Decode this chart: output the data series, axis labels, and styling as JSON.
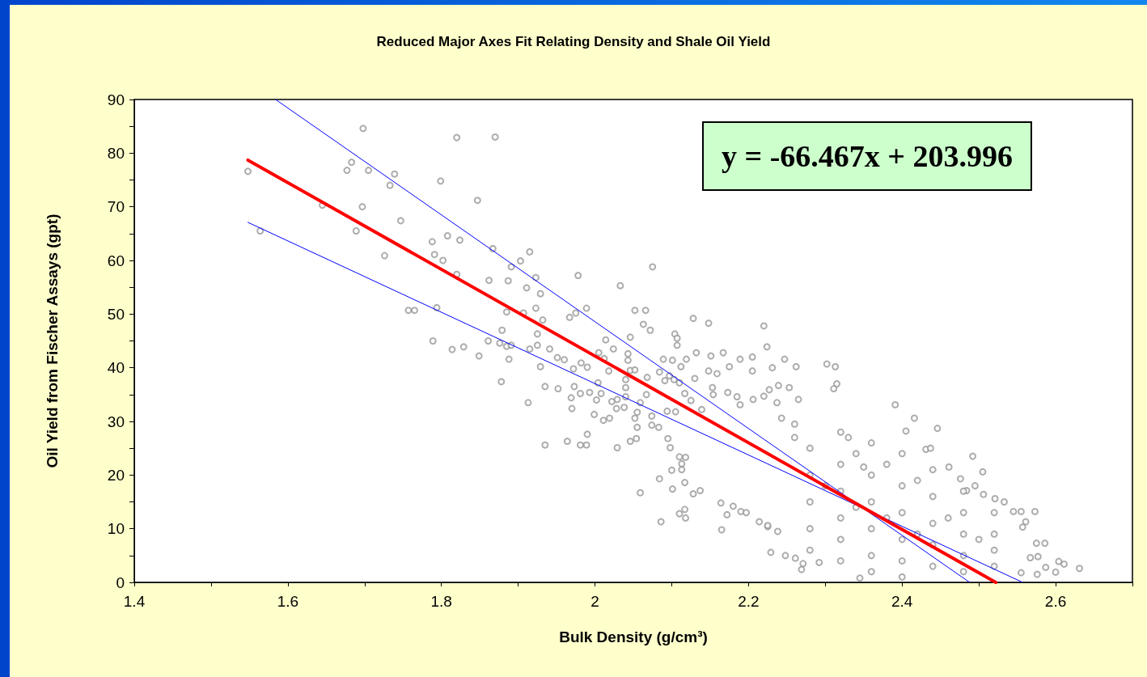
{
  "chart_data": {
    "type": "scatter",
    "title": "Reduced Major Axes Fit Relating Density and Shale Oil Yield",
    "xlabel": "Bulk Density (g/cm³)",
    "ylabel": "Oil Yield from Fischer Assays (gpt)",
    "annotations": [
      "y = -66.467x + 203.996"
    ],
    "xlim": [
      1.4,
      2.7
    ],
    "xticks": [
      1.4,
      {
        "value": 1.5,
        "label": null
      },
      1.6,
      {
        "value": 1.7,
        "label": null
      },
      1.8,
      {
        "value": 1.9,
        "label": null
      },
      2,
      {
        "value": 2.1,
        "label": null
      },
      2.2,
      {
        "value": 2.3,
        "label": null
      },
      2.4,
      {
        "value": 2.5,
        "label": null
      },
      2.6,
      {
        "value": 2.7,
        "label": null
      }
    ],
    "ylim": [
      0,
      90
    ],
    "yticks": [
      0,
      {
        "value": 5,
        "label": null
      },
      10,
      {
        "value": 15,
        "label": null
      },
      20,
      {
        "value": 25,
        "label": null
      },
      30,
      {
        "value": 35,
        "label": null
      },
      40,
      {
        "value": 45,
        "label": null
      },
      50,
      {
        "value": 55,
        "label": null
      },
      60,
      {
        "value": 65,
        "label": null
      },
      70,
      {
        "value": 75,
        "label": null
      },
      80,
      {
        "value": 85,
        "label": null
      },
      90
    ],
    "grid": false,
    "marker": "circle",
    "series": [
      {
        "color": "#999999",
        "x": [
          1.548,
          1.564,
          1.645,
          1.677,
          1.683,
          1.698,
          1.705,
          1.697,
          1.689,
          1.733,
          1.739,
          1.747,
          1.726,
          1.757,
          1.765,
          1.794,
          1.789,
          1.814,
          1.829,
          1.849,
          1.788,
          1.791,
          1.802,
          1.808,
          1.799,
          1.82,
          1.824,
          1.82,
          1.847,
          1.87,
          1.867,
          1.915,
          1.903,
          1.891,
          1.978,
          2.075,
          2.033,
          1.862,
          1.887,
          1.911,
          1.929,
          1.923,
          1.861,
          1.876,
          1.885,
          1.891,
          1.879,
          1.885,
          1.907,
          1.923,
          1.932,
          1.925,
          1.915,
          1.925,
          1.888,
          1.878,
          1.913,
          1.929,
          1.935,
          1.952,
          1.941,
          1.951,
          1.96,
          1.972,
          1.982,
          1.99,
          1.973,
          1.981,
          1.969,
          1.97,
          1.993,
          1.989,
          1.975,
          1.967,
          2.014,
          2.024,
          2.005,
          2.012,
          2.018,
          2.004,
          2.008,
          2.002,
          2.022,
          2.029,
          2.038,
          2.028,
          1.999,
          2.011,
          2.019,
          1.99,
          1.964,
          1.935,
          1.981,
          1.989,
          2.029,
          2.046,
          2.054,
          2.055,
          2.052,
          2.055,
          2.074,
          2.083,
          2.074,
          2.067,
          2.059,
          2.04,
          2.04,
          2.04,
          2.046,
          2.052,
          2.068,
          2.043,
          2.043,
          2.046,
          2.063,
          2.072,
          2.052,
          2.066,
          2.128,
          2.148,
          2.22,
          2.224,
          2.104,
          2.107,
          2.107,
          2.132,
          2.151,
          2.167,
          2.189,
          2.205,
          2.247,
          2.262,
          2.231,
          2.205,
          2.175,
          2.159,
          2.148,
          2.13,
          2.119,
          2.112,
          2.089,
          2.101,
          2.084,
          2.097,
          2.091,
          2.103,
          2.11,
          2.117,
          2.125,
          2.139,
          2.154,
          2.153,
          2.173,
          2.185,
          2.189,
          2.206,
          2.22,
          2.227,
          2.239,
          2.253,
          2.265,
          2.237,
          2.243,
          2.26,
          2.094,
          2.105,
          2.095,
          2.098,
          2.11,
          2.118,
          2.113,
          2.113,
          2.1,
          2.084,
          2.101,
          2.117,
          2.128,
          2.137,
          2.059,
          2.086,
          2.11,
          2.117,
          2.118,
          2.165,
          2.164,
          2.172,
          2.19,
          2.197,
          2.18,
          2.214,
          2.225,
          2.238,
          2.229,
          2.248,
          2.261,
          2.269,
          2.271,
          2.302,
          2.313,
          2.315,
          2.311,
          2.391,
          2.416,
          2.405,
          2.446,
          2.431,
          2.437,
          2.492,
          2.505,
          2.461,
          2.476,
          2.484,
          2.495,
          2.506,
          2.521,
          2.533,
          2.545,
          2.555,
          2.573,
          2.561,
          2.557,
          2.575,
          2.586,
          2.587,
          2.604,
          2.611,
          2.631,
          2.6,
          2.577,
          2.567,
          2.555,
          2.576,
          2.292,
          2.345,
          2.225,
          2.28,
          2.28,
          2.28,
          2.28,
          2.28,
          2.32,
          2.32,
          2.32,
          2.32,
          2.32,
          2.32,
          2.36,
          2.36,
          2.36,
          2.36,
          2.36,
          2.36,
          2.4,
          2.4,
          2.4,
          2.4,
          2.4,
          2.4,
          2.44,
          2.44,
          2.44,
          2.44,
          2.44,
          2.48,
          2.48,
          2.48,
          2.48,
          2.48,
          2.52,
          2.52,
          2.52,
          2.52,
          2.3,
          2.34,
          2.38,
          2.42,
          2.46,
          2.5,
          2.35,
          2.33,
          2.26,
          2.42,
          2.38,
          2.34
        ],
        "values": [
          76.6,
          65.5,
          70.3,
          76.8,
          78.3,
          84.6,
          76.8,
          70,
          65.5,
          74,
          76.1,
          67.4,
          60.9,
          50.7,
          50.7,
          51.2,
          45,
          43.4,
          43.9,
          42.2,
          63.5,
          61.1,
          60,
          64.6,
          74.8,
          82.9,
          63.8,
          57.4,
          71.2,
          83,
          62.2,
          61.6,
          59.9,
          58.8,
          57.2,
          58.8,
          55.3,
          56.3,
          56.2,
          54.9,
          53.8,
          56.8,
          45,
          44.6,
          44,
          44.2,
          47,
          50.4,
          50.2,
          51.1,
          48.9,
          46.3,
          43.5,
          44.2,
          41.6,
          37.4,
          33.5,
          40.2,
          36.5,
          36.1,
          43.5,
          41.9,
          41.5,
          39.8,
          40.9,
          40.1,
          36.5,
          35.2,
          34.4,
          32.4,
          35.4,
          51.1,
          50.2,
          49.4,
          45.2,
          43.5,
          42.8,
          41.7,
          39.4,
          37.2,
          35.2,
          34,
          33.7,
          34.1,
          32.6,
          32.4,
          31.3,
          30.2,
          30.6,
          27.6,
          26.3,
          25.6,
          25.6,
          25.6,
          25.1,
          26.3,
          26.8,
          31.7,
          30.6,
          28.9,
          29.3,
          28.9,
          31,
          35,
          33.5,
          34.6,
          36.3,
          37.8,
          39.5,
          39.6,
          38.2,
          41.4,
          42.6,
          45.7,
          48.1,
          47,
          50.7,
          50.7,
          49.2,
          48.3,
          47.8,
          43.9,
          46.3,
          45.5,
          44.2,
          42.8,
          42.2,
          42.8,
          41.6,
          42,
          41.6,
          40.2,
          40,
          39.4,
          40.2,
          38.9,
          39.4,
          38,
          41.6,
          40.2,
          41.6,
          41.4,
          39.2,
          38.5,
          37.6,
          37.8,
          37.2,
          35.2,
          33.9,
          32.2,
          35,
          36.3,
          35.4,
          34.6,
          33.1,
          34.1,
          34.7,
          35.9,
          36.7,
          36.3,
          34.1,
          33.5,
          30.6,
          29.5,
          31.9,
          31.8,
          26.8,
          25.1,
          23.4,
          23.3,
          22.1,
          21,
          20.9,
          19.3,
          17.4,
          18.6,
          16.5,
          17.1,
          16.7,
          11.3,
          12.8,
          13.6,
          12,
          9.8,
          14.8,
          12.6,
          13.2,
          13,
          14.2,
          11.3,
          10.4,
          9.5,
          5.6,
          5,
          4.5,
          2.4,
          3.5,
          40.7,
          40.2,
          37,
          36.1,
          33.1,
          30.6,
          28.2,
          28.7,
          24.8,
          25,
          23.5,
          20.6,
          21.5,
          19.3,
          17.1,
          18,
          16.4,
          15.6,
          15,
          13.2,
          13.2,
          13.2,
          11.3,
          10.3,
          7.3,
          7.3,
          2.8,
          3.9,
          3.4,
          2.6,
          1.9,
          4.8,
          4.6,
          1.8,
          1.5,
          3.7,
          0.8,
          10.6,
          25,
          20,
          15,
          10,
          6,
          28,
          22,
          17,
          12,
          8,
          4,
          26,
          20,
          15,
          10,
          5,
          2,
          24,
          18,
          13,
          8,
          4,
          1,
          21,
          16,
          11,
          7,
          3,
          17,
          13,
          9,
          5,
          2,
          13,
          9,
          6,
          3,
          18,
          14,
          12,
          9,
          12,
          8,
          21.5,
          27,
          27,
          19,
          22,
          24
        ]
      },
      {
        "type": "line",
        "marker": "none",
        "color": "#ff0000",
        "x": [
          1.548,
          2.522
        ],
        "values": [
          78.7,
          0
        ]
      },
      {
        "type": "line",
        "marker": "none",
        "color": "#0000ff",
        "x": [
          1.584,
          2.488
        ],
        "values": [
          90,
          0
        ]
      },
      {
        "type": "line",
        "marker": "none",
        "color": "#0000ff",
        "x": [
          1.548,
          2.557
        ],
        "values": [
          67.1,
          0
        ]
      }
    ]
  }
}
